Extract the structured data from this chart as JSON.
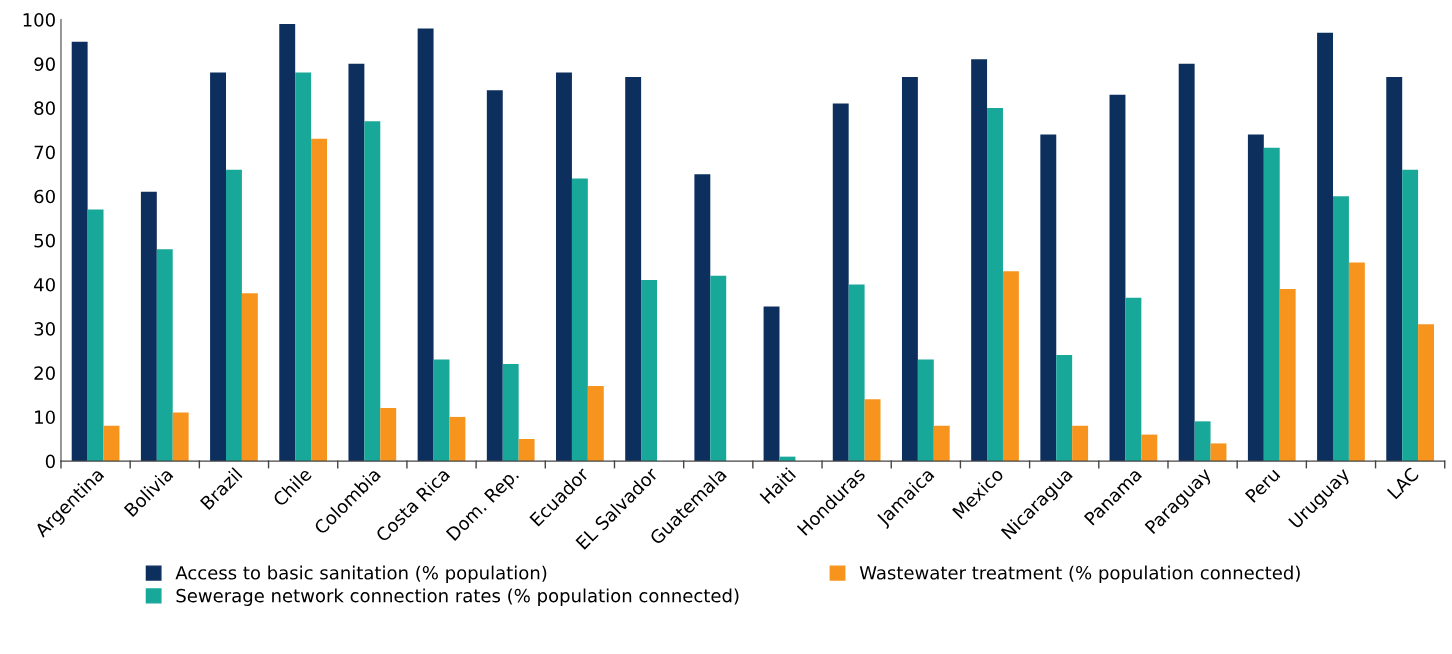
{
  "chart_data": {
    "type": "bar",
    "categories": [
      "Argentina",
      "Bolivia",
      "Brazil",
      "Chile",
      "Colombia",
      "Costa Rica",
      "Dom. Rep.",
      "Ecuador",
      "EL Salvador",
      "Guatemala",
      "Haiti",
      "Honduras",
      "Jamaica",
      "Mexico",
      "Nicaragua",
      "Panama",
      "Paraguay",
      "Peru",
      "Uruguay",
      "LAC"
    ],
    "series": [
      {
        "name": "Access to basic sanitation (% population)",
        "color": "#0d2f5e",
        "values": [
          95,
          61,
          88,
          99,
          90,
          98,
          84,
          88,
          87,
          65,
          35,
          81,
          87,
          91,
          74,
          83,
          90,
          74,
          97,
          87
        ]
      },
      {
        "name": "Sewerage network connection rates (% population connected)",
        "color": "#17a89a",
        "values": [
          57,
          48,
          66,
          88,
          77,
          23,
          22,
          64,
          41,
          42,
          1,
          40,
          23,
          80,
          24,
          37,
          9,
          71,
          60,
          66
        ]
      },
      {
        "name": "Wastewater treatment (% population connected)",
        "color": "#f7941d",
        "values": [
          8,
          11,
          38,
          73,
          12,
          10,
          5,
          17,
          null,
          null,
          null,
          14,
          8,
          43,
          8,
          6,
          4,
          39,
          45,
          31
        ]
      }
    ],
    "ylim": [
      0,
      100
    ],
    "yticks": [
      0,
      10,
      20,
      30,
      40,
      50,
      60,
      70,
      80,
      90,
      100
    ],
    "grid": false,
    "legend": "bottom"
  }
}
